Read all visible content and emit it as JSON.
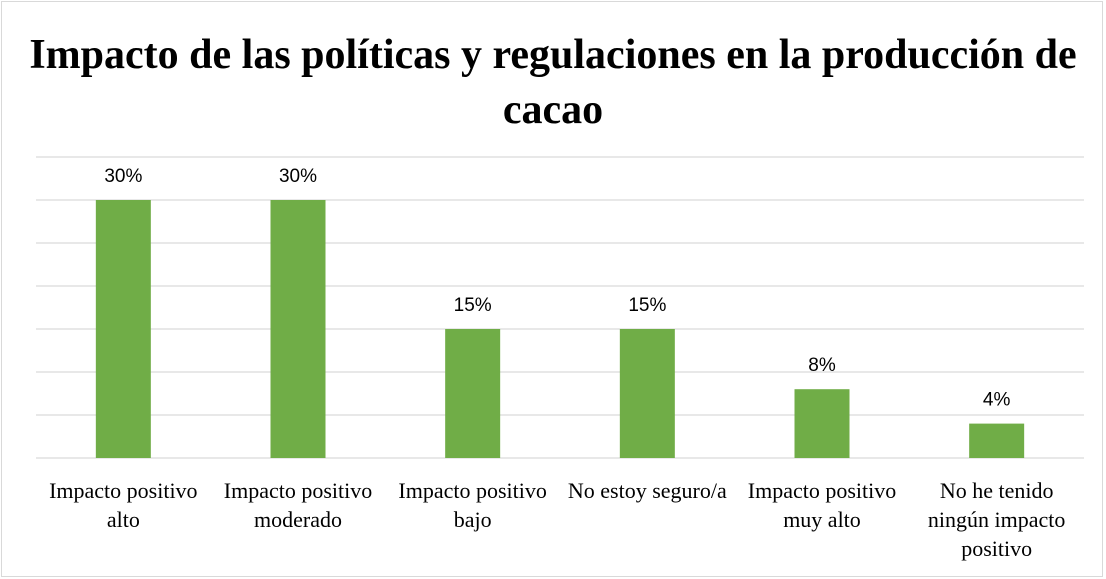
{
  "chart_data": {
    "type": "bar",
    "title": "Impacto de las políticas y regulaciones en la producción de cacao",
    "categories": [
      "Impacto positivo alto",
      "Impacto positivo moderado",
      "Impacto positivo bajo",
      "No estoy seguro/a",
      "Impacto positivo muy alto",
      "No he tenido ningún impacto positivo"
    ],
    "values": [
      30,
      30,
      15,
      15,
      8,
      4
    ],
    "data_labels": [
      "30%",
      "30%",
      "15%",
      "15%",
      "8%",
      "4%"
    ],
    "ylim": [
      0,
      35
    ],
    "grid": true,
    "legend": "none",
    "bar_color": "#70ad47",
    "grid_color": "#d9d9d9"
  }
}
